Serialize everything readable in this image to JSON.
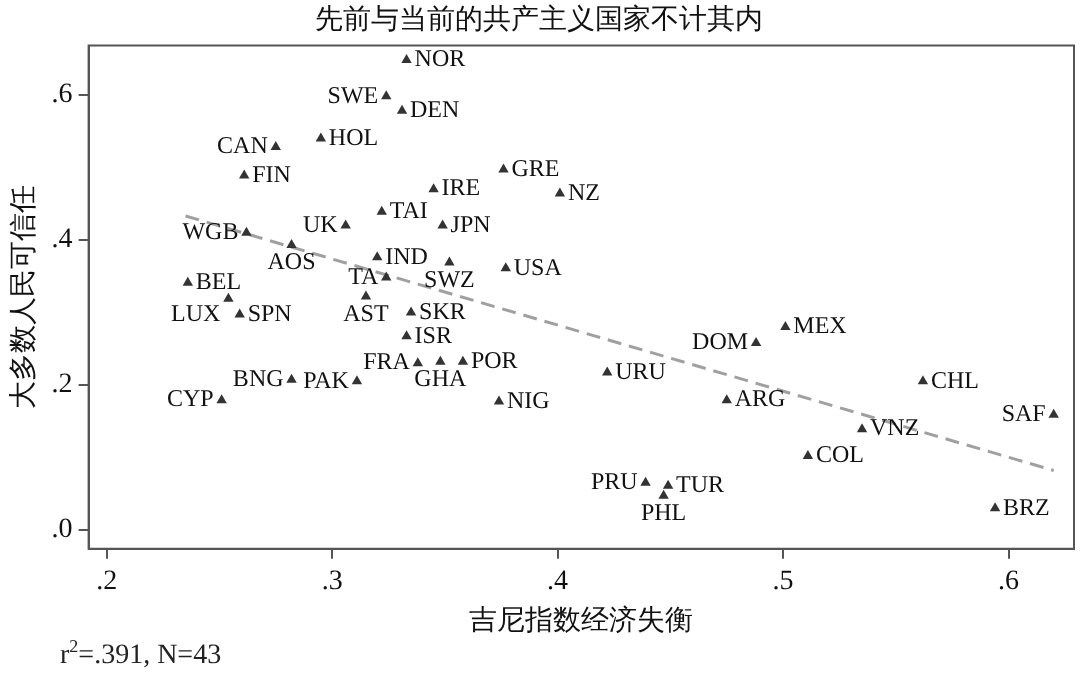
{
  "chart_data": {
    "type": "scatter",
    "title": "先前与当前的共产主义国家不计其内",
    "xlabel": "吉尼指数经济失衡",
    "ylabel": "大多数人民可信任",
    "xlim": [
      0.192,
      0.629
    ],
    "ylim": [
      -0.026,
      0.668
    ],
    "xticks": [
      {
        "value": 0.2,
        "label": ".2"
      },
      {
        "value": 0.3,
        "label": ".3"
      },
      {
        "value": 0.4,
        "label": ".4"
      },
      {
        "value": 0.5,
        "label": ".5"
      },
      {
        "value": 0.6,
        "label": ".6"
      }
    ],
    "yticks": [
      {
        "value": 0,
        "label": ".0"
      },
      {
        "value": 0.2,
        "label": ".2"
      },
      {
        "value": 0.4,
        "label": ".4"
      },
      {
        "value": 0.6,
        "label": ".6"
      }
    ],
    "grid": false,
    "legend": false,
    "series": [
      {
        "color": "#333333",
        "marker": "triangle",
        "x": [
          0.333,
          0.324,
          0.331,
          0.275,
          0.295,
          0.261,
          0.345,
          0.376,
          0.401,
          0.322,
          0.349,
          0.306,
          0.262,
          0.282,
          0.32,
          0.352,
          0.324,
          0.315,
          0.377,
          0.236,
          0.254,
          0.259,
          0.335,
          0.333,
          0.338,
          0.348,
          0.358,
          0.311,
          0.282,
          0.251,
          0.374,
          0.422,
          0.501,
          0.488,
          0.562,
          0.62,
          0.475,
          0.535,
          0.511,
          0.449,
          0.439,
          0.447,
          0.594
        ],
        "values": [
          0.648,
          0.598,
          0.578,
          0.528,
          0.54,
          0.489,
          0.47,
          0.497,
          0.464,
          0.439,
          0.42,
          0.42,
          0.41,
          0.393,
          0.376,
          0.369,
          0.348,
          0.322,
          0.361,
          0.341,
          0.319,
          0.297,
          0.3,
          0.267,
          0.23,
          0.232,
          0.232,
          0.205,
          0.207,
          0.179,
          0.177,
          0.217,
          0.28,
          0.258,
          0.205,
          0.159,
          0.179,
          0.139,
          0.102,
          0.061,
          0.065,
          0.047,
          0.03
        ]
      },
      {
        "type": "line",
        "color": "#a0a0a0",
        "marker": "none",
        "line_style": "dashed",
        "x": [
          0.235,
          0.62
        ],
        "values": [
          0.433,
          0.082
        ]
      }
    ],
    "annotations": [
      {
        "text": "NOR",
        "x": 0.333,
        "y": 0.648
      },
      {
        "text": "SWE",
        "x": 0.324,
        "y": 0.598
      },
      {
        "text": "DEN",
        "x": 0.331,
        "y": 0.578
      },
      {
        "text": "CAN",
        "x": 0.275,
        "y": 0.528
      },
      {
        "text": "HOL",
        "x": 0.295,
        "y": 0.54
      },
      {
        "text": "FIN",
        "x": 0.261,
        "y": 0.489
      },
      {
        "text": "IRE",
        "x": 0.345,
        "y": 0.47
      },
      {
        "text": "GRE",
        "x": 0.376,
        "y": 0.497
      },
      {
        "text": "NZ",
        "x": 0.401,
        "y": 0.464
      },
      {
        "text": "TAI",
        "x": 0.322,
        "y": 0.439
      },
      {
        "text": "JPN",
        "x": 0.349,
        "y": 0.42
      },
      {
        "text": "UK",
        "x": 0.306,
        "y": 0.42
      },
      {
        "text": "WGB",
        "x": 0.262,
        "y": 0.41
      },
      {
        "text": "AOS",
        "x": 0.282,
        "y": 0.393
      },
      {
        "text": "IND",
        "x": 0.32,
        "y": 0.376
      },
      {
        "text": "SWZ",
        "x": 0.352,
        "y": 0.369
      },
      {
        "text": "TA",
        "x": 0.324,
        "y": 0.348
      },
      {
        "text": "AST",
        "x": 0.315,
        "y": 0.322
      },
      {
        "text": "USA",
        "x": 0.377,
        "y": 0.361
      },
      {
        "text": "BEL",
        "x": 0.236,
        "y": 0.341
      },
      {
        "text": "LUX",
        "x": 0.254,
        "y": 0.319
      },
      {
        "text": "SPN",
        "x": 0.259,
        "y": 0.297
      },
      {
        "text": "SKR",
        "x": 0.335,
        "y": 0.3
      },
      {
        "text": "ISR",
        "x": 0.333,
        "y": 0.267
      },
      {
        "text": "FRA",
        "x": 0.338,
        "y": 0.23
      },
      {
        "text": "GHA",
        "x": 0.348,
        "y": 0.232
      },
      {
        "text": "POR",
        "x": 0.358,
        "y": 0.232
      },
      {
        "text": "PAK",
        "x": 0.311,
        "y": 0.205
      },
      {
        "text": "BNG",
        "x": 0.282,
        "y": 0.207
      },
      {
        "text": "CYP",
        "x": 0.251,
        "y": 0.179
      },
      {
        "text": "NIG",
        "x": 0.374,
        "y": 0.177
      },
      {
        "text": "URU",
        "x": 0.422,
        "y": 0.217
      },
      {
        "text": "MEX",
        "x": 0.501,
        "y": 0.28
      },
      {
        "text": "DOM",
        "x": 0.488,
        "y": 0.258
      },
      {
        "text": "CHL",
        "x": 0.562,
        "y": 0.205
      },
      {
        "text": "SAF",
        "x": 0.62,
        "y": 0.159
      },
      {
        "text": "ARG",
        "x": 0.475,
        "y": 0.179
      },
      {
        "text": "VNZ",
        "x": 0.535,
        "y": 0.139
      },
      {
        "text": "COL",
        "x": 0.511,
        "y": 0.102
      },
      {
        "text": "TUR",
        "x": 0.449,
        "y": 0.061
      },
      {
        "text": "PRU",
        "x": 0.439,
        "y": 0.065
      },
      {
        "text": "PHL",
        "x": 0.447,
        "y": 0.047
      },
      {
        "text": "BRZ",
        "x": 0.594,
        "y": 0.03
      },
      "r$^{2}$=.391, N=43"
    ]
  }
}
